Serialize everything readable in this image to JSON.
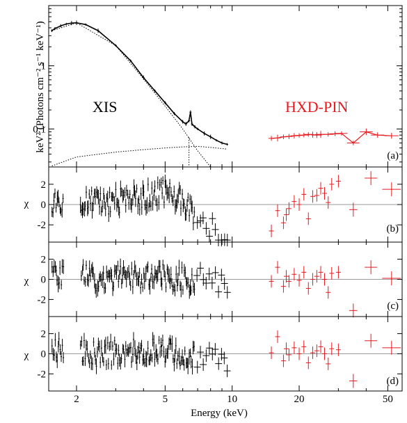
{
  "chart_data": [
    {
      "type": "line",
      "panel_label": "(a)",
      "ylabel": "keV² (Photons cm⁻² s⁻¹ keV⁻¹)",
      "y_scale": "log",
      "x_scale": "log",
      "ylim": [
        0.025,
        9
      ],
      "xlim": [
        1.5,
        58
      ],
      "y_ticks": [
        {
          "value": 0.1,
          "label": "0.1"
        },
        {
          "value": 1,
          "label": "1"
        }
      ],
      "annotations": [
        {
          "text": "XIS",
          "color": "#000000"
        },
        {
          "text": "HXD-PIN",
          "color": "#e8171c"
        }
      ],
      "series": [
        {
          "color": "#000000",
          "x": [
            1.55,
            1.6,
            1.7,
            1.8,
            1.9,
            2.0,
            2.2,
            2.5,
            3.0,
            3.5,
            4.0,
            4.5,
            5.0,
            5.5,
            6.0,
            6.2,
            6.4,
            6.5,
            6.6,
            6.8,
            7.0,
            7.5,
            8.0,
            8.5,
            9.0,
            9.5
          ],
          "y": [
            3.6,
            3.9,
            4.3,
            4.6,
            4.75,
            4.8,
            4.5,
            3.6,
            2.1,
            1.2,
            0.65,
            0.4,
            0.26,
            0.175,
            0.13,
            0.12,
            0.135,
            0.185,
            0.12,
            0.108,
            0.1,
            0.085,
            0.075,
            0.066,
            0.06,
            0.057
          ]
        },
        {
          "color": "#e8171c",
          "x": [
            15,
            16,
            17,
            18,
            19,
            20,
            21,
            22,
            23,
            24,
            25,
            27,
            29,
            31,
            35,
            40,
            45,
            52
          ],
          "y": [
            0.071,
            0.072,
            0.075,
            0.076,
            0.078,
            0.079,
            0.08,
            0.082,
            0.081,
            0.08,
            0.082,
            0.082,
            0.084,
            0.085,
            0.06,
            0.09,
            0.08,
            0.078
          ]
        }
      ],
      "model_components": [
        {
          "style": "dotted",
          "x": [
            1.55,
            2,
            3,
            4,
            5,
            6,
            7,
            8,
            9
          ],
          "y": [
            3.6,
            4.8,
            2.1,
            0.62,
            0.23,
            0.1,
            0.045,
            0.02,
            0.009
          ]
        },
        {
          "style": "dotted",
          "x": [
            1.55,
            2,
            3,
            4,
            5,
            6,
            7,
            8,
            9.5
          ],
          "y": [
            0.026,
            0.036,
            0.043,
            0.047,
            0.05,
            0.052,
            0.053,
            0.051,
            0.048
          ]
        },
        {
          "style": "dotted",
          "x": [
            6.4
          ],
          "y": [
            0.06
          ]
        }
      ]
    },
    {
      "type": "scatter",
      "panel_label": "(b)",
      "ylabel": "χ",
      "ylim": [
        -3.7,
        3.7
      ],
      "y_ticks": [
        -2,
        0,
        2
      ],
      "xis_mean": [
        0.3,
        0.5,
        0.6,
        0.5,
        0.2,
        0.1,
        0.3,
        0.4,
        0.6,
        0.8,
        1.0,
        1.3,
        0.8,
        -0.3,
        -1.2,
        -2.0,
        -2.8,
        -3.4
      ],
      "pin_points": [
        {
          "x": 15,
          "y": -2.6
        },
        {
          "x": 16,
          "y": -0.6
        },
        {
          "x": 17,
          "y": -1.8
        },
        {
          "x": 17.5,
          "y": -1.0
        },
        {
          "x": 18,
          "y": -0.4
        },
        {
          "x": 19,
          "y": 0.3
        },
        {
          "x": 20,
          "y": 0.0
        },
        {
          "x": 21,
          "y": 1.0
        },
        {
          "x": 22,
          "y": -1.4
        },
        {
          "x": 23,
          "y": 0.8
        },
        {
          "x": 24,
          "y": 0.9
        },
        {
          "x": 25,
          "y": 1.6
        },
        {
          "x": 26,
          "y": 1.1
        },
        {
          "x": 27,
          "y": 0.2
        },
        {
          "x": 28,
          "y": 2.0
        },
        {
          "x": 30,
          "y": 2.3
        },
        {
          "x": 35,
          "y": -0.5
        },
        {
          "x": 42,
          "y": 2.6
        },
        {
          "x": 52,
          "y": 1.5
        }
      ]
    },
    {
      "type": "scatter",
      "panel_label": "(c)",
      "ylabel": "χ",
      "ylim": [
        -3.7,
        3.7
      ],
      "y_ticks": [
        -2,
        0,
        2
      ],
      "xis_mean": [
        0.3,
        0.4,
        0.4,
        0.3,
        0.0,
        -0.2,
        0.1,
        0.2,
        0.3,
        0.2,
        0.3,
        0.4,
        0.0,
        0.0,
        -0.2,
        0.2,
        0.0,
        -1.5
      ],
      "pin_points": [
        {
          "x": 15,
          "y": -0.2
        },
        {
          "x": 16,
          "y": 1.2
        },
        {
          "x": 17,
          "y": -0.7
        },
        {
          "x": 17.5,
          "y": 0.3
        },
        {
          "x": 18,
          "y": -0.2
        },
        {
          "x": 19,
          "y": 0.5
        },
        {
          "x": 20,
          "y": -0.1
        },
        {
          "x": 21,
          "y": 0.7
        },
        {
          "x": 22,
          "y": -0.9
        },
        {
          "x": 23,
          "y": 0.0
        },
        {
          "x": 24,
          "y": 0.3
        },
        {
          "x": 25,
          "y": 0.7
        },
        {
          "x": 26,
          "y": 0.0
        },
        {
          "x": 27,
          "y": -1.3
        },
        {
          "x": 28,
          "y": 0.6
        },
        {
          "x": 30,
          "y": 0.7
        },
        {
          "x": 35,
          "y": -3.1
        },
        {
          "x": 42,
          "y": 1.2
        },
        {
          "x": 52,
          "y": 0.1
        }
      ]
    },
    {
      "type": "scatter",
      "panel_label": "(d)",
      "ylabel": "χ",
      "ylim": [
        -3.7,
        3.7
      ],
      "y_ticks": [
        -2,
        0,
        2
      ],
      "xis_mean": [
        0.3,
        0.4,
        0.4,
        0.3,
        0.0,
        -0.2,
        0.1,
        0.2,
        0.3,
        0.2,
        0.3,
        0.4,
        0.0,
        0.0,
        -0.3,
        0.3,
        -0.3,
        -1.6
      ],
      "pin_points": [
        {
          "x": 15,
          "y": 0.1
        },
        {
          "x": 16,
          "y": 1.7
        },
        {
          "x": 17,
          "y": -0.7
        },
        {
          "x": 17.5,
          "y": 0.5
        },
        {
          "x": 18,
          "y": -0.1
        },
        {
          "x": 19,
          "y": 0.6
        },
        {
          "x": 20,
          "y": 0.0
        },
        {
          "x": 21,
          "y": 0.7
        },
        {
          "x": 22,
          "y": -0.9
        },
        {
          "x": 23,
          "y": 0.1
        },
        {
          "x": 24,
          "y": 0.3
        },
        {
          "x": 25,
          "y": 0.7
        },
        {
          "x": 26,
          "y": 0.0
        },
        {
          "x": 27,
          "y": -1.0
        },
        {
          "x": 28,
          "y": 0.5
        },
        {
          "x": 30,
          "y": 0.4
        },
        {
          "x": 35,
          "y": -2.7
        },
        {
          "x": 42,
          "y": 1.3
        },
        {
          "x": 52,
          "y": 0.6
        }
      ]
    }
  ],
  "x_axis": {
    "label": "Energy (keV)",
    "scale": "log",
    "xlim": [
      1.5,
      58
    ],
    "ticks": [
      {
        "value": 2,
        "label": "2"
      },
      {
        "value": 5,
        "label": "5"
      },
      {
        "value": 10,
        "label": "10"
      },
      {
        "value": 20,
        "label": "20"
      },
      {
        "value": 50,
        "label": "50"
      }
    ]
  },
  "colors": {
    "xis": "#000000",
    "pin": "#e8171c",
    "zero_line": "#9a9a9a"
  }
}
